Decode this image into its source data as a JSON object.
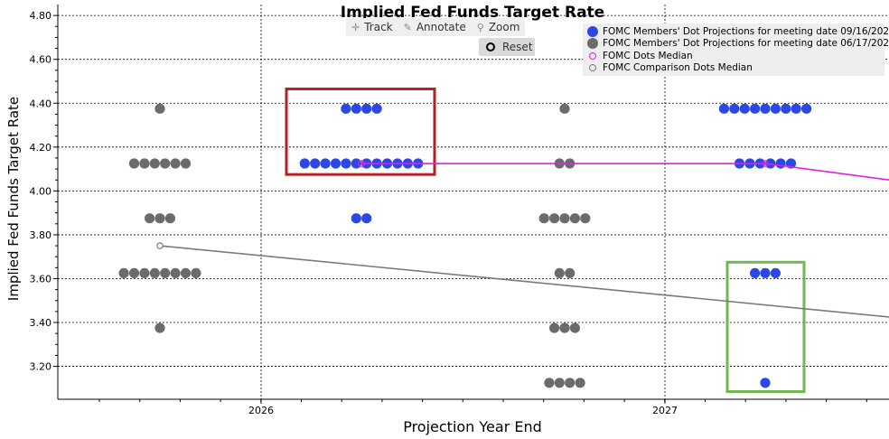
{
  "toolbar": {
    "track_label": "Track",
    "annotate_label": "Annotate",
    "zoom_label": "Zoom",
    "reset_label": "Reset",
    "track_icon": "crosshair-icon",
    "annotate_icon": "pencil-icon",
    "zoom_icon": "magnifier-icon",
    "reset_icon": "radio-icon"
  },
  "colors": {
    "current_dots": "#2a48e6",
    "previous_dots": "#6b6b6b",
    "median_current": "#e020e0",
    "median_previous": "#7a7a7a",
    "highlight_red": "#b22222",
    "highlight_green": "#70b850",
    "legend_bg": "#eeeeee"
  },
  "chart_data": {
    "type": "scatter",
    "title": "Implied Fed Funds Target Rate",
    "xlabel": "Projection Year End",
    "ylabel": "Implied Fed Funds Target Rate",
    "x_ticks": [
      "2026",
      "2027"
    ],
    "y_ticks": [
      "3.20",
      "3.40",
      "3.60",
      "3.80",
      "4.00",
      "4.20",
      "4.40",
      "4.60",
      "4.80"
    ],
    "ylim": [
      3.05,
      4.85
    ],
    "grid": true,
    "legend_position": "top-right",
    "legend": [
      "FOMC Members' Dot Projections for meeting date 09/16/2026",
      "FOMC Members' Dot Projections for meeting date 06/17/2026",
      "FOMC Dots Median",
      "FOMC Comparison Dots Median"
    ],
    "dot_groups": [
      {
        "series": "06/17/2026",
        "period": "2025",
        "rate": 4.375,
        "count": 1
      },
      {
        "series": "06/17/2026",
        "period": "2025",
        "rate": 4.125,
        "count": 6
      },
      {
        "series": "06/17/2026",
        "period": "2025",
        "rate": 3.875,
        "count": 3
      },
      {
        "series": "06/17/2026",
        "period": "2025",
        "rate": 3.625,
        "count": 8
      },
      {
        "series": "06/17/2026",
        "period": "2025",
        "rate": 3.375,
        "count": 1
      },
      {
        "series": "09/16/2026",
        "period": "2026",
        "rate": 4.375,
        "count": 4
      },
      {
        "series": "09/16/2026",
        "period": "2026",
        "rate": 4.125,
        "count": 12
      },
      {
        "series": "09/16/2026",
        "period": "2026",
        "rate": 3.875,
        "count": 2
      },
      {
        "series": "06/17/2026",
        "period": "2027",
        "rate": 4.375,
        "count": 1
      },
      {
        "series": "06/17/2026",
        "period": "2027",
        "rate": 4.125,
        "count": 2
      },
      {
        "series": "06/17/2026",
        "period": "2027",
        "rate": 3.875,
        "count": 5
      },
      {
        "series": "06/17/2026",
        "period": "2027",
        "rate": 3.625,
        "count": 2
      },
      {
        "series": "06/17/2026",
        "period": "2027",
        "rate": 3.375,
        "count": 3
      },
      {
        "series": "06/17/2026",
        "period": "2027",
        "rate": 3.125,
        "count": 4
      },
      {
        "series": "09/16/2026",
        "period": "2028",
        "rate": 4.375,
        "count": 9
      },
      {
        "series": "09/16/2026",
        "period": "2028",
        "rate": 4.125,
        "count": 6
      },
      {
        "series": "09/16/2026",
        "period": "2028",
        "rate": 3.625,
        "count": 3
      },
      {
        "series": "09/16/2026",
        "period": "2028",
        "rate": 3.125,
        "count": 1
      }
    ],
    "median_current": [
      {
        "period": "2026",
        "rate": 4.125
      },
      {
        "period": "2028",
        "rate": 4.125
      },
      {
        "period": "longer run",
        "rate": 4.05
      }
    ],
    "median_previous": [
      {
        "period": "2025",
        "rate": 3.75
      },
      {
        "period": "longer run",
        "rate": 3.425
      }
    ],
    "highlights": [
      {
        "color": "red",
        "period": "2026",
        "rates": [
          4.075,
          4.465
        ]
      },
      {
        "color": "green",
        "period": "2028",
        "rates": [
          3.085,
          3.675
        ]
      }
    ]
  }
}
